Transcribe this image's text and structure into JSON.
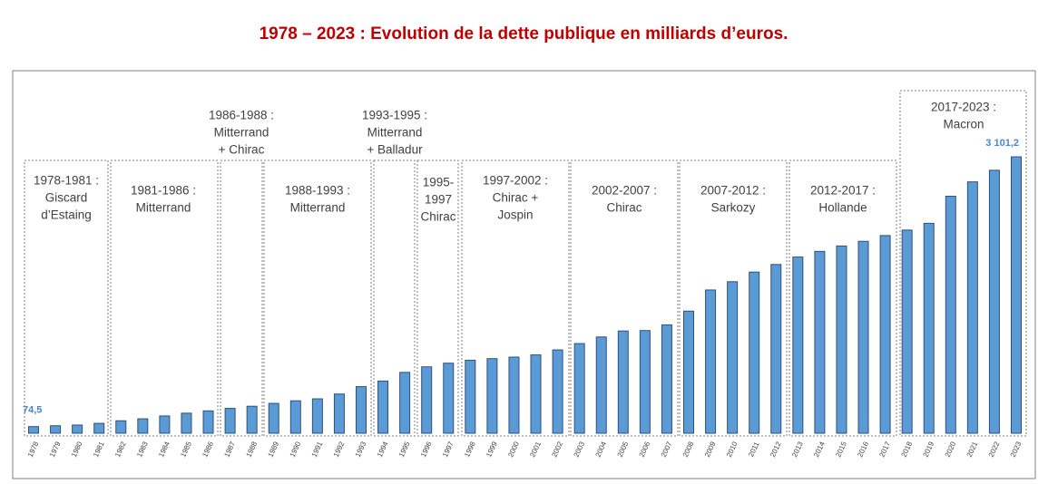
{
  "chart_data": {
    "type": "bar",
    "title": "1978 – 2023 : Evolution de la dette publique en milliards d’euros.",
    "categories": [
      "1978",
      "1979",
      "1980",
      "1981",
      "1982",
      "1983",
      "1984",
      "1985",
      "1986",
      "1987",
      "1988",
      "1989",
      "1990",
      "1991",
      "1992",
      "1993",
      "1994",
      "1995",
      "1996",
      "1997",
      "1998",
      "1999",
      "2000",
      "2001",
      "2002",
      "2003",
      "2004",
      "2005",
      "2006",
      "2007",
      "2008",
      "2009",
      "2010",
      "2011",
      "2012",
      "2013",
      "2014",
      "2015",
      "2016",
      "2017",
      "2018",
      "2019",
      "2020",
      "2021",
      "2022",
      "2023"
    ],
    "values": [
      74.5,
      84,
      92,
      111,
      140,
      162,
      194,
      225,
      251,
      279,
      303,
      335,
      364,
      386,
      440,
      523,
      586,
      683,
      745,
      786,
      819,
      837,
      854,
      879,
      935,
      1006,
      1080,
      1147,
      1152,
      1216,
      1370,
      1607,
      1700,
      1808,
      1893,
      1977,
      2040,
      2101,
      2153,
      2218,
      2279,
      2355,
      2659,
      2820,
      2950,
      3101.2
    ],
    "value_labels": [
      "74,5",
      null,
      null,
      null,
      null,
      null,
      null,
      null,
      null,
      null,
      null,
      null,
      null,
      null,
      null,
      null,
      null,
      null,
      null,
      null,
      null,
      null,
      null,
      null,
      null,
      null,
      null,
      null,
      null,
      null,
      null,
      null,
      null,
      null,
      null,
      null,
      null,
      null,
      null,
      null,
      null,
      null,
      null,
      null,
      null,
      "3 101,2"
    ],
    "color": "#5b9bd5",
    "annotations": [
      {
        "lines": [
          "1978-1981 :",
          "Giscard",
          "d’Estaing"
        ]
      },
      {
        "lines": [
          "1981-1986 :",
          "Mitterrand"
        ]
      },
      {
        "lines": [
          "1986-1988 :",
          "Mitterrand",
          "+ Chirac"
        ]
      },
      {
        "lines": [
          "1988-1993 :",
          "Mitterrand"
        ]
      },
      {
        "lines": [
          "1993-1995 :",
          "Mitterrand",
          "+ Balladur"
        ]
      },
      {
        "lines": [
          "1995-",
          "1997",
          "Chirac"
        ]
      },
      {
        "lines": [
          "1997-2002 :",
          "Chirac +",
          "Jospin"
        ]
      },
      {
        "lines": [
          "2002-2007 :",
          "Chirac"
        ]
      },
      {
        "lines": [
          "2007-2012 :",
          "Sarkozy"
        ]
      },
      {
        "lines": [
          "2012-2017 :",
          "Hollande"
        ]
      },
      {
        "lines": [
          "2017-2023 :",
          "Macron"
        ]
      }
    ]
  }
}
